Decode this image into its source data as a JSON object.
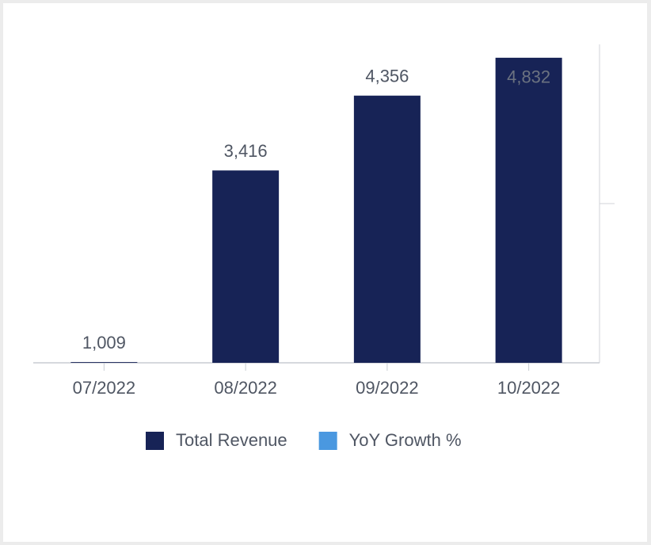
{
  "chart_data": {
    "type": "bar",
    "categories": [
      "07/2022",
      "08/2022",
      "09/2022",
      "10/2022"
    ],
    "series": [
      {
        "name": "Total Revenue",
        "color": "#172356",
        "values": [
          1009,
          3416,
          4356,
          4832
        ],
        "value_labels": [
          "1,009",
          "3,416",
          "4,356",
          "4,832"
        ]
      },
      {
        "name": "YoY Growth %",
        "color": "#4a98e0"
      }
    ],
    "ylim": [
      1000,
      5000
    ]
  }
}
